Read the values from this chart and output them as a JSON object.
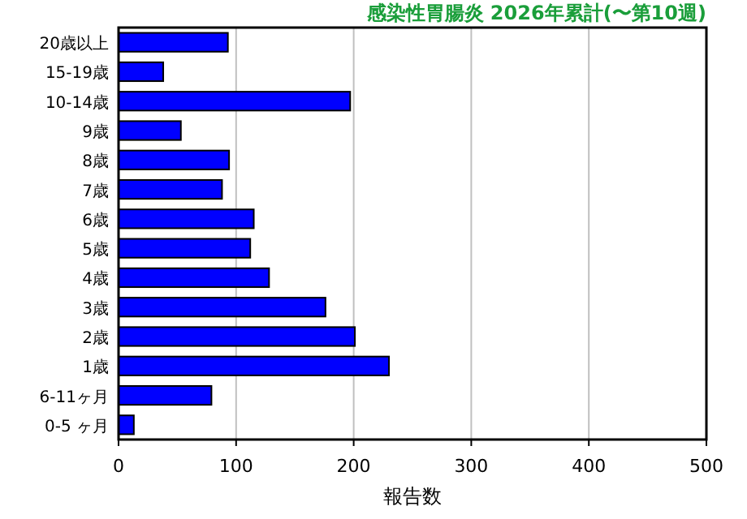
{
  "chart_data": {
    "type": "bar",
    "orientation": "horizontal",
    "title": "感染性胃腸炎 2026年累計(〜第10週)",
    "xlabel": "報告数",
    "categories": [
      "20歳以上",
      "15-19歳",
      "10-14歳",
      "9歳",
      "8歳",
      "7歳",
      "6歳",
      "5歳",
      "4歳",
      "3歳",
      "2歳",
      "1歳",
      "6-11ヶ月",
      "0-5 ヶ月"
    ],
    "values": [
      93,
      38,
      197,
      53,
      94,
      88,
      115,
      112,
      128,
      176,
      201,
      230,
      79,
      13
    ],
    "color": "#0000ff",
    "xlim": [
      0,
      500
    ],
    "xticks": [
      0,
      100,
      200,
      300,
      400,
      500
    ],
    "grid": "x"
  }
}
